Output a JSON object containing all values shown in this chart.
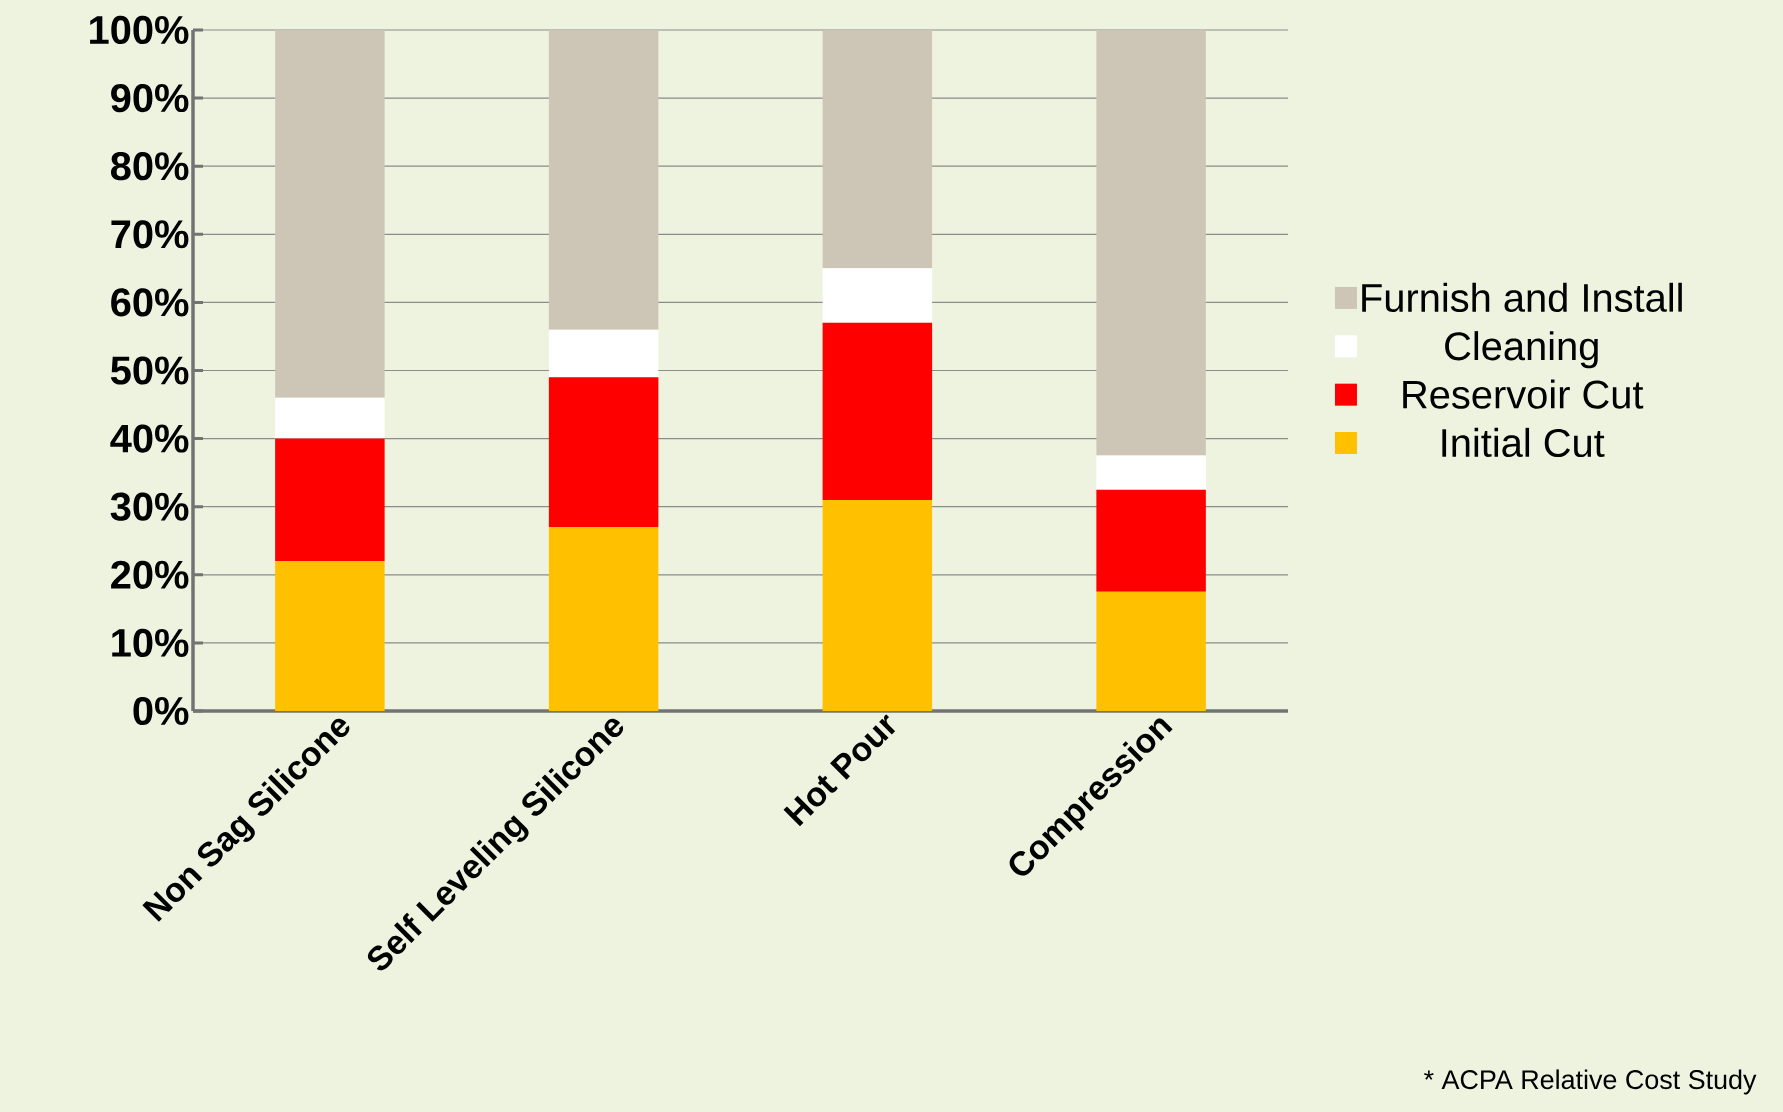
{
  "chart_data": {
    "type": "bar",
    "stacked": true,
    "categories": [
      "Non Sag Silicone",
      "Self Leveling Silicone",
      "Hot Pour",
      "Compression"
    ],
    "series": [
      {
        "name": "Initial Cut",
        "color": "#ffc000",
        "values": [
          22,
          27,
          31,
          17.5
        ]
      },
      {
        "name": "Reservoir Cut",
        "color": "#ff0000",
        "values": [
          18,
          22,
          26,
          15
        ]
      },
      {
        "name": "Cleaning",
        "color": "#ffffff",
        "values": [
          6,
          7,
          8,
          5
        ]
      },
      {
        "name": "Furnish and Install",
        "color": "#cdc6b6",
        "values": [
          54,
          44,
          35,
          62.5
        ]
      }
    ],
    "ylim": [
      0,
      100
    ],
    "yticks": [
      {
        "value": 0,
        "label": "0%"
      },
      {
        "value": 10,
        "label": "10%"
      },
      {
        "value": 20,
        "label": "20%"
      },
      {
        "value": 30,
        "label": "30%"
      },
      {
        "value": 40,
        "label": "40%"
      },
      {
        "value": 50,
        "label": "50%"
      },
      {
        "value": 60,
        "label": "60%"
      },
      {
        "value": 70,
        "label": "70%"
      },
      {
        "value": 80,
        "label": "80%"
      },
      {
        "value": 90,
        "label": "90%"
      },
      {
        "value": 100,
        "label": "100%"
      }
    ],
    "grid": "y",
    "legend": "right",
    "annotations": [
      "* ACPA Relative Cost Study"
    ]
  }
}
